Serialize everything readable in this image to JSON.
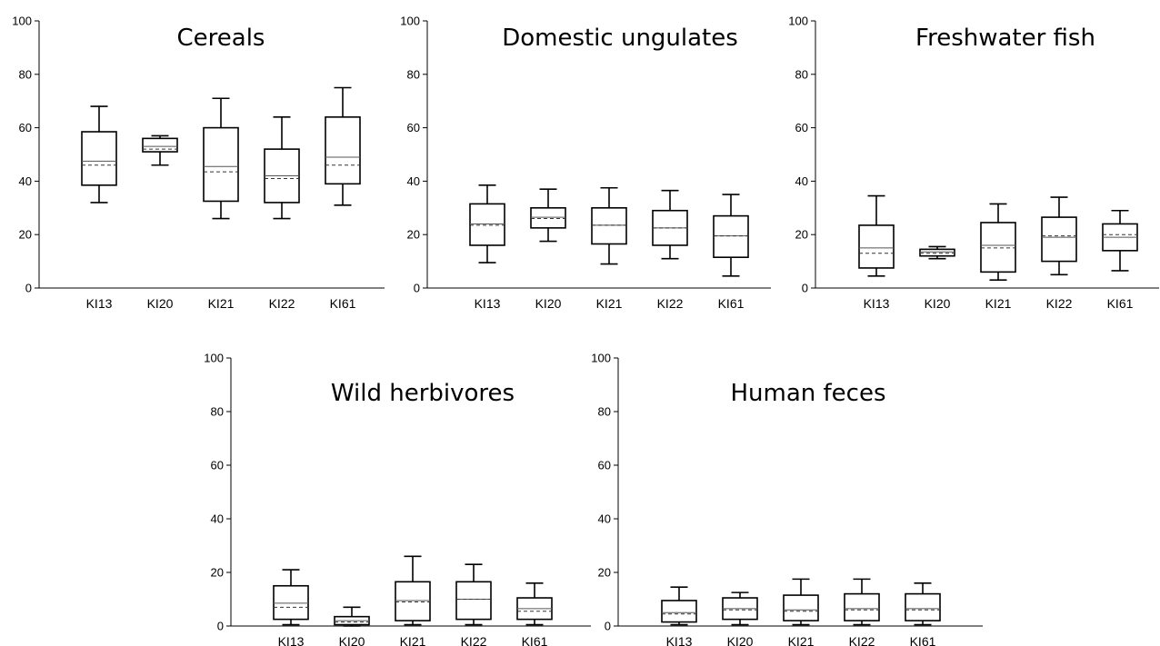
{
  "chart_data": [
    {
      "type": "box",
      "title": "Cereals",
      "categories": [
        "KI13",
        "KI20",
        "KI21",
        "KI22",
        "KI61"
      ],
      "ylim": [
        0,
        100
      ],
      "yticks": [
        0,
        20,
        40,
        60,
        80,
        100
      ],
      "boxes": [
        {
          "min": 32,
          "q1": 38.5,
          "median": 47.5,
          "mean": 46,
          "q3": 58.5,
          "max": 68
        },
        {
          "min": 46,
          "q1": 51,
          "median": 53,
          "mean": 52,
          "q3": 56,
          "max": 57
        },
        {
          "min": 26,
          "q1": 32.5,
          "median": 45.5,
          "mean": 43.5,
          "q3": 60,
          "max": 71
        },
        {
          "min": 26,
          "q1": 32,
          "median": 42,
          "mean": 41,
          "q3": 52,
          "max": 64
        },
        {
          "min": 31,
          "q1": 39,
          "median": 49,
          "mean": 46,
          "q3": 64,
          "max": 75
        }
      ]
    },
    {
      "type": "box",
      "title": "Domestic ungulates",
      "categories": [
        "KI13",
        "KI20",
        "KI21",
        "KI22",
        "KI61"
      ],
      "ylim": [
        0,
        100
      ],
      "yticks": [
        0,
        20,
        40,
        60,
        80,
        100
      ],
      "boxes": [
        {
          "min": 9.5,
          "q1": 16,
          "median": 24,
          "mean": 23.5,
          "q3": 31.5,
          "max": 38.5
        },
        {
          "min": 17.5,
          "q1": 22.5,
          "median": 26.5,
          "mean": 26,
          "q3": 30,
          "max": 37
        },
        {
          "min": 9,
          "q1": 16.5,
          "median": 23.5,
          "mean": 23.5,
          "q3": 30,
          "max": 37.5
        },
        {
          "min": 11,
          "q1": 16,
          "median": 22.5,
          "mean": 22.5,
          "q3": 29,
          "max": 36.5
        },
        {
          "min": 4.5,
          "q1": 11.5,
          "median": 19.5,
          "mean": 19.5,
          "q3": 27,
          "max": 35
        }
      ]
    },
    {
      "type": "box",
      "title": "Freshwater fish",
      "categories": [
        "KI13",
        "KI20",
        "KI21",
        "KI22",
        "KI61"
      ],
      "ylim": [
        0,
        100
      ],
      "yticks": [
        0,
        20,
        40,
        60,
        80,
        100
      ],
      "boxes": [
        {
          "min": 4.5,
          "q1": 7.5,
          "median": 15,
          "mean": 13,
          "q3": 23.5,
          "max": 34.5
        },
        {
          "min": 11,
          "q1": 12,
          "median": 13.5,
          "mean": 13,
          "q3": 14.5,
          "max": 15.5
        },
        {
          "min": 3,
          "q1": 6,
          "median": 16,
          "mean": 15,
          "q3": 24.5,
          "max": 31.5
        },
        {
          "min": 5,
          "q1": 10,
          "median": 19,
          "mean": 19.5,
          "q3": 26.5,
          "max": 34
        },
        {
          "min": 6.5,
          "q1": 14,
          "median": 19,
          "mean": 20,
          "q3": 24,
          "max": 29
        }
      ]
    },
    {
      "type": "box",
      "title": "Wild herbivores",
      "categories": [
        "KI13",
        "KI20",
        "KI21",
        "KI22",
        "KI61"
      ],
      "ylim": [
        0,
        100
      ],
      "yticks": [
        0,
        20,
        40,
        60,
        80,
        100
      ],
      "boxes": [
        {
          "min": 0.5,
          "q1": 2.5,
          "median": 8.5,
          "mean": 7,
          "q3": 15,
          "max": 21
        },
        {
          "min": 0,
          "q1": 0.5,
          "median": 2,
          "mean": 1.5,
          "q3": 3.5,
          "max": 7
        },
        {
          "min": 0.5,
          "q1": 2,
          "median": 9.5,
          "mean": 9,
          "q3": 16.5,
          "max": 26
        },
        {
          "min": 0.5,
          "q1": 2.5,
          "median": 10,
          "mean": 10,
          "q3": 16.5,
          "max": 23
        },
        {
          "min": 0.5,
          "q1": 2.5,
          "median": 6.5,
          "mean": 5.5,
          "q3": 10.5,
          "max": 16
        }
      ]
    },
    {
      "type": "box",
      "title": "Human feces",
      "categories": [
        "KI13",
        "KI20",
        "KI21",
        "KI22",
        "KI61"
      ],
      "ylim": [
        0,
        100
      ],
      "yticks": [
        0,
        20,
        40,
        60,
        80,
        100
      ],
      "boxes": [
        {
          "min": 0.5,
          "q1": 1.5,
          "median": 5,
          "mean": 4.5,
          "q3": 9.5,
          "max": 14.5
        },
        {
          "min": 0.5,
          "q1": 2.5,
          "median": 6.5,
          "mean": 6,
          "q3": 10.5,
          "max": 12.5
        },
        {
          "min": 0.5,
          "q1": 2,
          "median": 6,
          "mean": 5.5,
          "q3": 11.5,
          "max": 17.5
        },
        {
          "min": 0.5,
          "q1": 2,
          "median": 6.5,
          "mean": 6,
          "q3": 12,
          "max": 17.5
        },
        {
          "min": 0.5,
          "q1": 2,
          "median": 6.5,
          "mean": 6,
          "q3": 12,
          "max": 16
        }
      ]
    }
  ]
}
